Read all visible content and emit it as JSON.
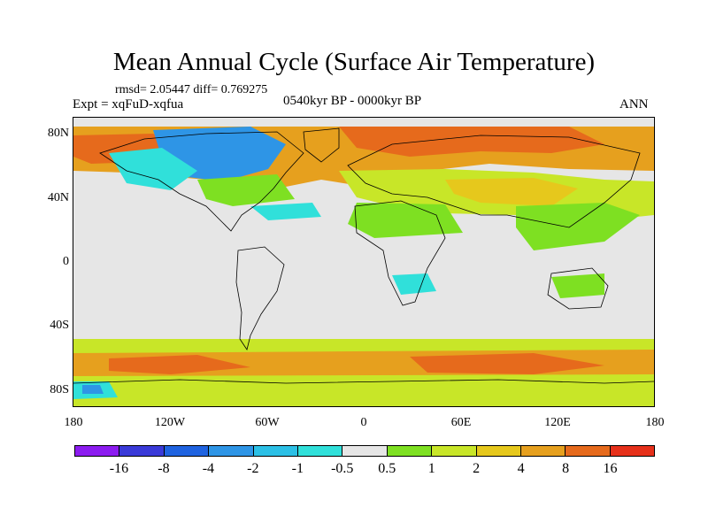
{
  "title": "Mean Annual Cycle (Surface Air Temperature)",
  "stats": "rmsd= 2.05447 diff= 0.769275",
  "expt": "Expt = xqFuD-xqfua",
  "period": "0540kyr BP - 0000kyr BP",
  "season": "ANN",
  "lat_labels": [
    "80N",
    "40N",
    "0",
    "40S",
    "80S"
  ],
  "lon_labels": [
    "180",
    "120W",
    "60W",
    "0",
    "60E",
    "120E",
    "180"
  ],
  "colorbar": {
    "labels": [
      "-16",
      "-8",
      "-4",
      "-2",
      "-1",
      "-0.5",
      "0.5",
      "1",
      "2",
      "4",
      "8",
      "16"
    ],
    "colors": [
      "#8c1cf0",
      "#3a3ad8",
      "#1f63e0",
      "#2e95e6",
      "#2cc0e6",
      "#30e0da",
      "#e6e6e6",
      "#7ee022",
      "#c8e628",
      "#e6c81c",
      "#e6a01e",
      "#e66a1c",
      "#e6301a"
    ]
  }
}
